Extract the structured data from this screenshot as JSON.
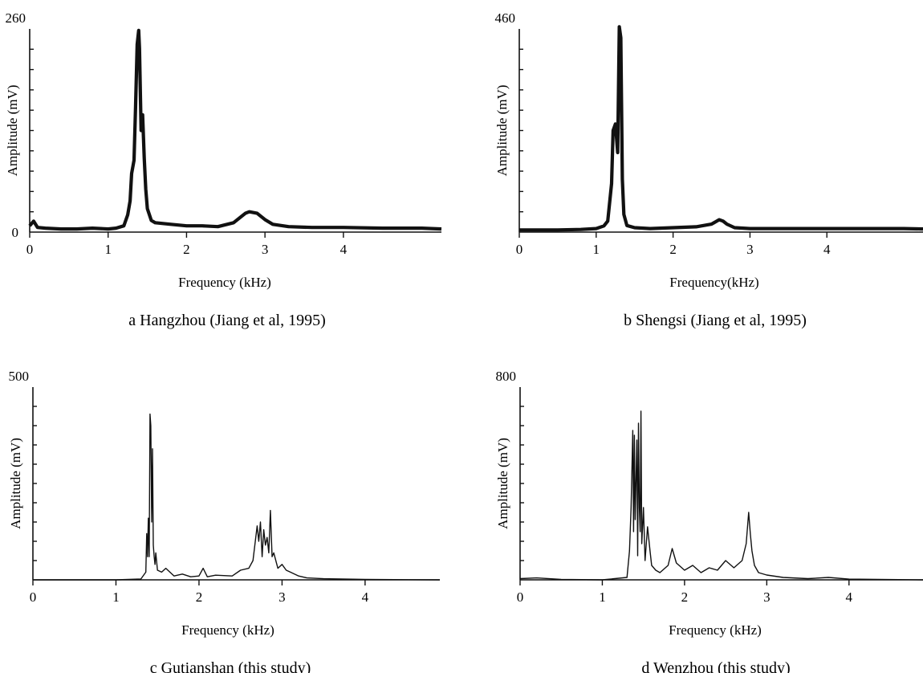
{
  "figure": {
    "chart_data": [
      {
        "type": "line",
        "caption": "a Hangzhou (Jiang et al, 1995)",
        "xlabel": "Frequency (kHz)",
        "ylabel": "Amplitude (mV)",
        "xlim": [
          0,
          5.25
        ],
        "ylim": [
          0,
          260
        ],
        "x_ticks": [
          "0",
          "1",
          "2",
          "3",
          "4"
        ],
        "y_tick_labels": {
          "top": "260",
          "bottom": "0"
        },
        "series": [
          {
            "stroke": "#111111",
            "width": 4.2,
            "x": [
              0.0,
              0.05,
              0.1,
              0.2,
              0.4,
              0.6,
              0.8,
              1.0,
              1.1,
              1.2,
              1.25,
              1.28,
              1.3,
              1.33,
              1.35,
              1.37,
              1.39,
              1.4,
              1.42,
              1.44,
              1.46,
              1.48,
              1.5,
              1.55,
              1.6,
              1.8,
              2.0,
              2.2,
              2.4,
              2.6,
              2.7,
              2.75,
              2.8,
              2.9,
              3.0,
              3.1,
              3.3,
              3.6,
              4.0,
              4.5,
              5.0,
              5.25
            ],
            "y": [
              8,
              14,
              6,
              5,
              4,
              4,
              5,
              4,
              5,
              8,
              22,
              40,
              75,
              92,
              160,
              240,
              258,
              235,
              130,
              150,
              95,
              55,
              30,
              15,
              12,
              10,
              8,
              8,
              7,
              12,
              20,
              24,
              26,
              24,
              16,
              10,
              7,
              6,
              6,
              5,
              5,
              4
            ]
          }
        ]
      },
      {
        "type": "line",
        "caption": "b Shengsi (Jiang et al, 1995)",
        "xlabel": "Frequency(kHz)",
        "ylabel": "Amplitude (mV)",
        "xlim": [
          0,
          5.25
        ],
        "ylim": [
          0,
          460
        ],
        "x_ticks": [
          "0",
          "1",
          "2",
          "3",
          "4"
        ],
        "y_tick_labels": {
          "top": "460",
          "bottom": ""
        },
        "series": [
          {
            "stroke": "#111111",
            "width": 4.2,
            "x": [
              0.0,
              0.2,
              0.5,
              0.8,
              1.0,
              1.1,
              1.15,
              1.2,
              1.22,
              1.25,
              1.28,
              1.3,
              1.32,
              1.34,
              1.36,
              1.4,
              1.5,
              1.7,
              2.0,
              2.3,
              2.5,
              2.6,
              2.65,
              2.7,
              2.8,
              3.0,
              3.5,
              4.0,
              4.5,
              5.0,
              5.25
            ],
            "y": [
              5,
              5,
              5,
              6,
              8,
              14,
              25,
              110,
              230,
              245,
              180,
              465,
              440,
              120,
              40,
              15,
              10,
              8,
              10,
              12,
              18,
              28,
              25,
              18,
              10,
              8,
              8,
              8,
              8,
              8,
              7
            ]
          }
        ]
      },
      {
        "type": "line",
        "caption": "c Gutianshan (this study)",
        "xlabel": "Frequency (kHz)",
        "ylabel": "Amplitude (mV)",
        "xlim": [
          0,
          4.9
        ],
        "ylim": [
          0,
          500
        ],
        "x_ticks": [
          "0",
          "1",
          "2",
          "3",
          "4"
        ],
        "y_tick_labels": {
          "top": "500",
          "bottom": ""
        },
        "series": [
          {
            "stroke": "#111111",
            "width": 1.4,
            "x": [
              0.0,
              0.5,
              1.0,
              1.3,
              1.36,
              1.37,
              1.38,
              1.39,
              1.4,
              1.41,
              1.42,
              1.43,
              1.44,
              1.45,
              1.46,
              1.47,
              1.48,
              1.5,
              1.55,
              1.6,
              1.7,
              1.8,
              1.9,
              2.0,
              2.05,
              2.1,
              2.2,
              2.4,
              2.5,
              2.6,
              2.65,
              2.7,
              2.72,
              2.74,
              2.76,
              2.78,
              2.8,
              2.82,
              2.84,
              2.86,
              2.88,
              2.9,
              2.95,
              3.0,
              3.05,
              3.1,
              3.2,
              3.3,
              3.5,
              4.0,
              4.9
            ],
            "y": [
              0,
              0,
              0,
              2,
              20,
              120,
              60,
              160,
              60,
              430,
              400,
              150,
              340,
              90,
              60,
              40,
              70,
              25,
              20,
              30,
              10,
              15,
              8,
              10,
              30,
              8,
              12,
              10,
              25,
              30,
              50,
              140,
              100,
              150,
              60,
              130,
              90,
              110,
              70,
              180,
              60,
              70,
              30,
              40,
              25,
              20,
              10,
              5,
              3,
              1,
              0
            ]
          }
        ]
      },
      {
        "type": "line",
        "caption": "d Wenzhou (this study)",
        "xlabel": "Frequency (kHz)",
        "ylabel": "Amplitude (mV)",
        "xlim": [
          0,
          4.9
        ],
        "ylim": [
          0,
          800
        ],
        "x_ticks": [
          "0",
          "1",
          "2",
          "3",
          "4"
        ],
        "y_tick_labels": {
          "top": "800",
          "bottom": ""
        },
        "series": [
          {
            "stroke": "#111111",
            "width": 1.4,
            "x": [
              0.0,
              0.2,
              0.5,
              1.0,
              1.3,
              1.33,
              1.35,
              1.37,
              1.38,
              1.39,
              1.4,
              1.42,
              1.43,
              1.44,
              1.45,
              1.46,
              1.47,
              1.48,
              1.5,
              1.52,
              1.55,
              1.58,
              1.6,
              1.65,
              1.7,
              1.8,
              1.85,
              1.9,
              2.0,
              2.1,
              2.2,
              2.3,
              2.4,
              2.5,
              2.6,
              2.7,
              2.75,
              2.78,
              2.8,
              2.82,
              2.85,
              2.9,
              3.0,
              3.2,
              3.5,
              3.75,
              4.0,
              4.9
            ],
            "y": [
              5,
              8,
              2,
              0,
              10,
              120,
              300,
              620,
              200,
              600,
              250,
              580,
              100,
              650,
              300,
              200,
              700,
              150,
              300,
              80,
              220,
              120,
              60,
              40,
              30,
              60,
              130,
              70,
              40,
              60,
              30,
              50,
              40,
              80,
              50,
              80,
              150,
              280,
              190,
              120,
              60,
              30,
              20,
              10,
              5,
              10,
              3,
              0
            ]
          }
        ]
      }
    ]
  }
}
